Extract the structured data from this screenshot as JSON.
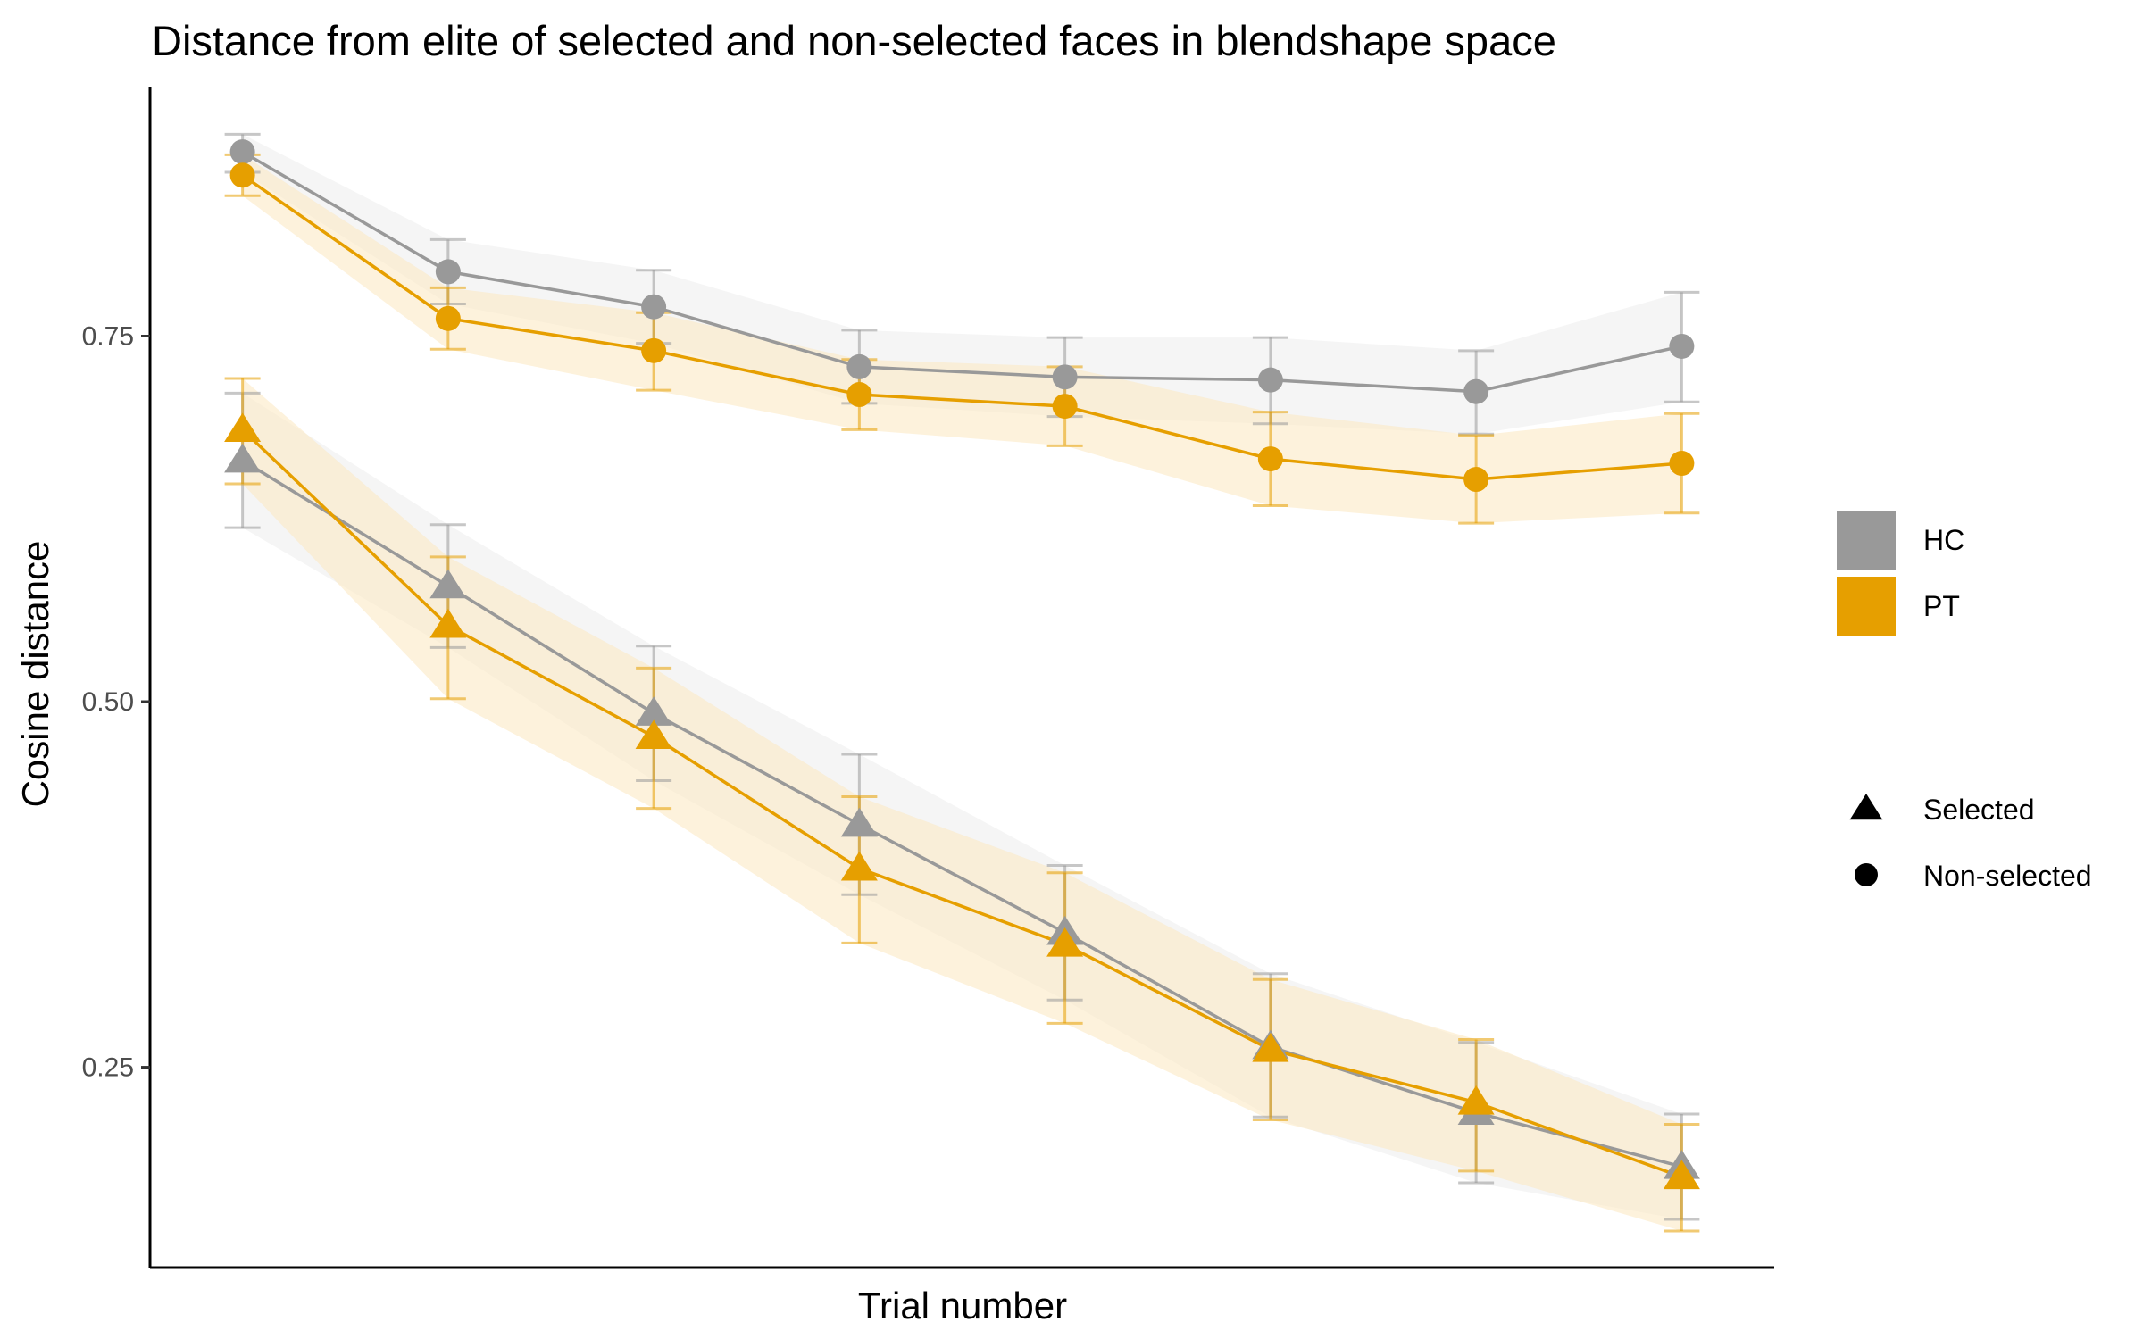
{
  "chart_data": {
    "type": "line",
    "title": "Distance from elite of selected and non-selected faces in blendshape space",
    "xlabel": "Trial number",
    "ylabel": "Cosine distance",
    "x": [
      1,
      2,
      3,
      4,
      5,
      6,
      7,
      8
    ],
    "xlim": [
      0.55,
      8.45
    ],
    "ylim": [
      0.113,
      0.92
    ],
    "y_ticks": [
      {
        "value": 0.25,
        "label": "0.25"
      },
      {
        "value": 0.5,
        "label": "0.50"
      },
      {
        "value": 0.75,
        "label": "0.75"
      }
    ],
    "grid": false,
    "legend_position": "right",
    "groups": [
      {
        "name": "HC",
        "color": "#999999"
      },
      {
        "name": "PT",
        "color": "#E69F00"
      }
    ],
    "shapes": [
      {
        "name": "Selected",
        "shape": "triangle"
      },
      {
        "name": "Non-selected",
        "shape": "circle"
      }
    ],
    "series": [
      {
        "group": "HC",
        "condition": "Non-selected",
        "shape": "circle",
        "color": "#999999",
        "values": [
          0.876,
          0.794,
          0.77,
          0.729,
          0.722,
          0.72,
          0.712,
          0.743
        ],
        "error_low": [
          0.862,
          0.772,
          0.745,
          0.704,
          0.695,
          0.69,
          0.683,
          0.705
        ],
        "error_high": [
          0.888,
          0.816,
          0.795,
          0.754,
          0.749,
          0.749,
          0.74,
          0.78
        ]
      },
      {
        "group": "PT",
        "condition": "Non-selected",
        "shape": "circle",
        "color": "#E69F00",
        "values": [
          0.86,
          0.762,
          0.74,
          0.71,
          0.702,
          0.666,
          0.652,
          0.663
        ],
        "error_low": [
          0.846,
          0.741,
          0.713,
          0.686,
          0.675,
          0.634,
          0.622,
          0.629
        ],
        "error_high": [
          0.874,
          0.783,
          0.766,
          0.734,
          0.729,
          0.698,
          0.682,
          0.697
        ]
      },
      {
        "group": "HC",
        "condition": "Selected",
        "shape": "triangle",
        "color": "#999999",
        "values": [
          0.665,
          0.579,
          0.492,
          0.416,
          0.342,
          0.264,
          0.219,
          0.182
        ],
        "error_low": [
          0.619,
          0.537,
          0.446,
          0.368,
          0.296,
          0.216,
          0.171,
          0.146
        ],
        "error_high": [
          0.711,
          0.621,
          0.538,
          0.464,
          0.388,
          0.314,
          0.267,
          0.218
        ]
      },
      {
        "group": "PT",
        "condition": "Selected",
        "shape": "triangle",
        "color": "#E69F00",
        "values": [
          0.686,
          0.552,
          0.476,
          0.386,
          0.334,
          0.262,
          0.226,
          0.175
        ],
        "error_low": [
          0.649,
          0.502,
          0.427,
          0.335,
          0.28,
          0.214,
          0.179,
          0.138
        ],
        "error_high": [
          0.721,
          0.599,
          0.523,
          0.435,
          0.383,
          0.31,
          0.269,
          0.211
        ]
      }
    ]
  }
}
